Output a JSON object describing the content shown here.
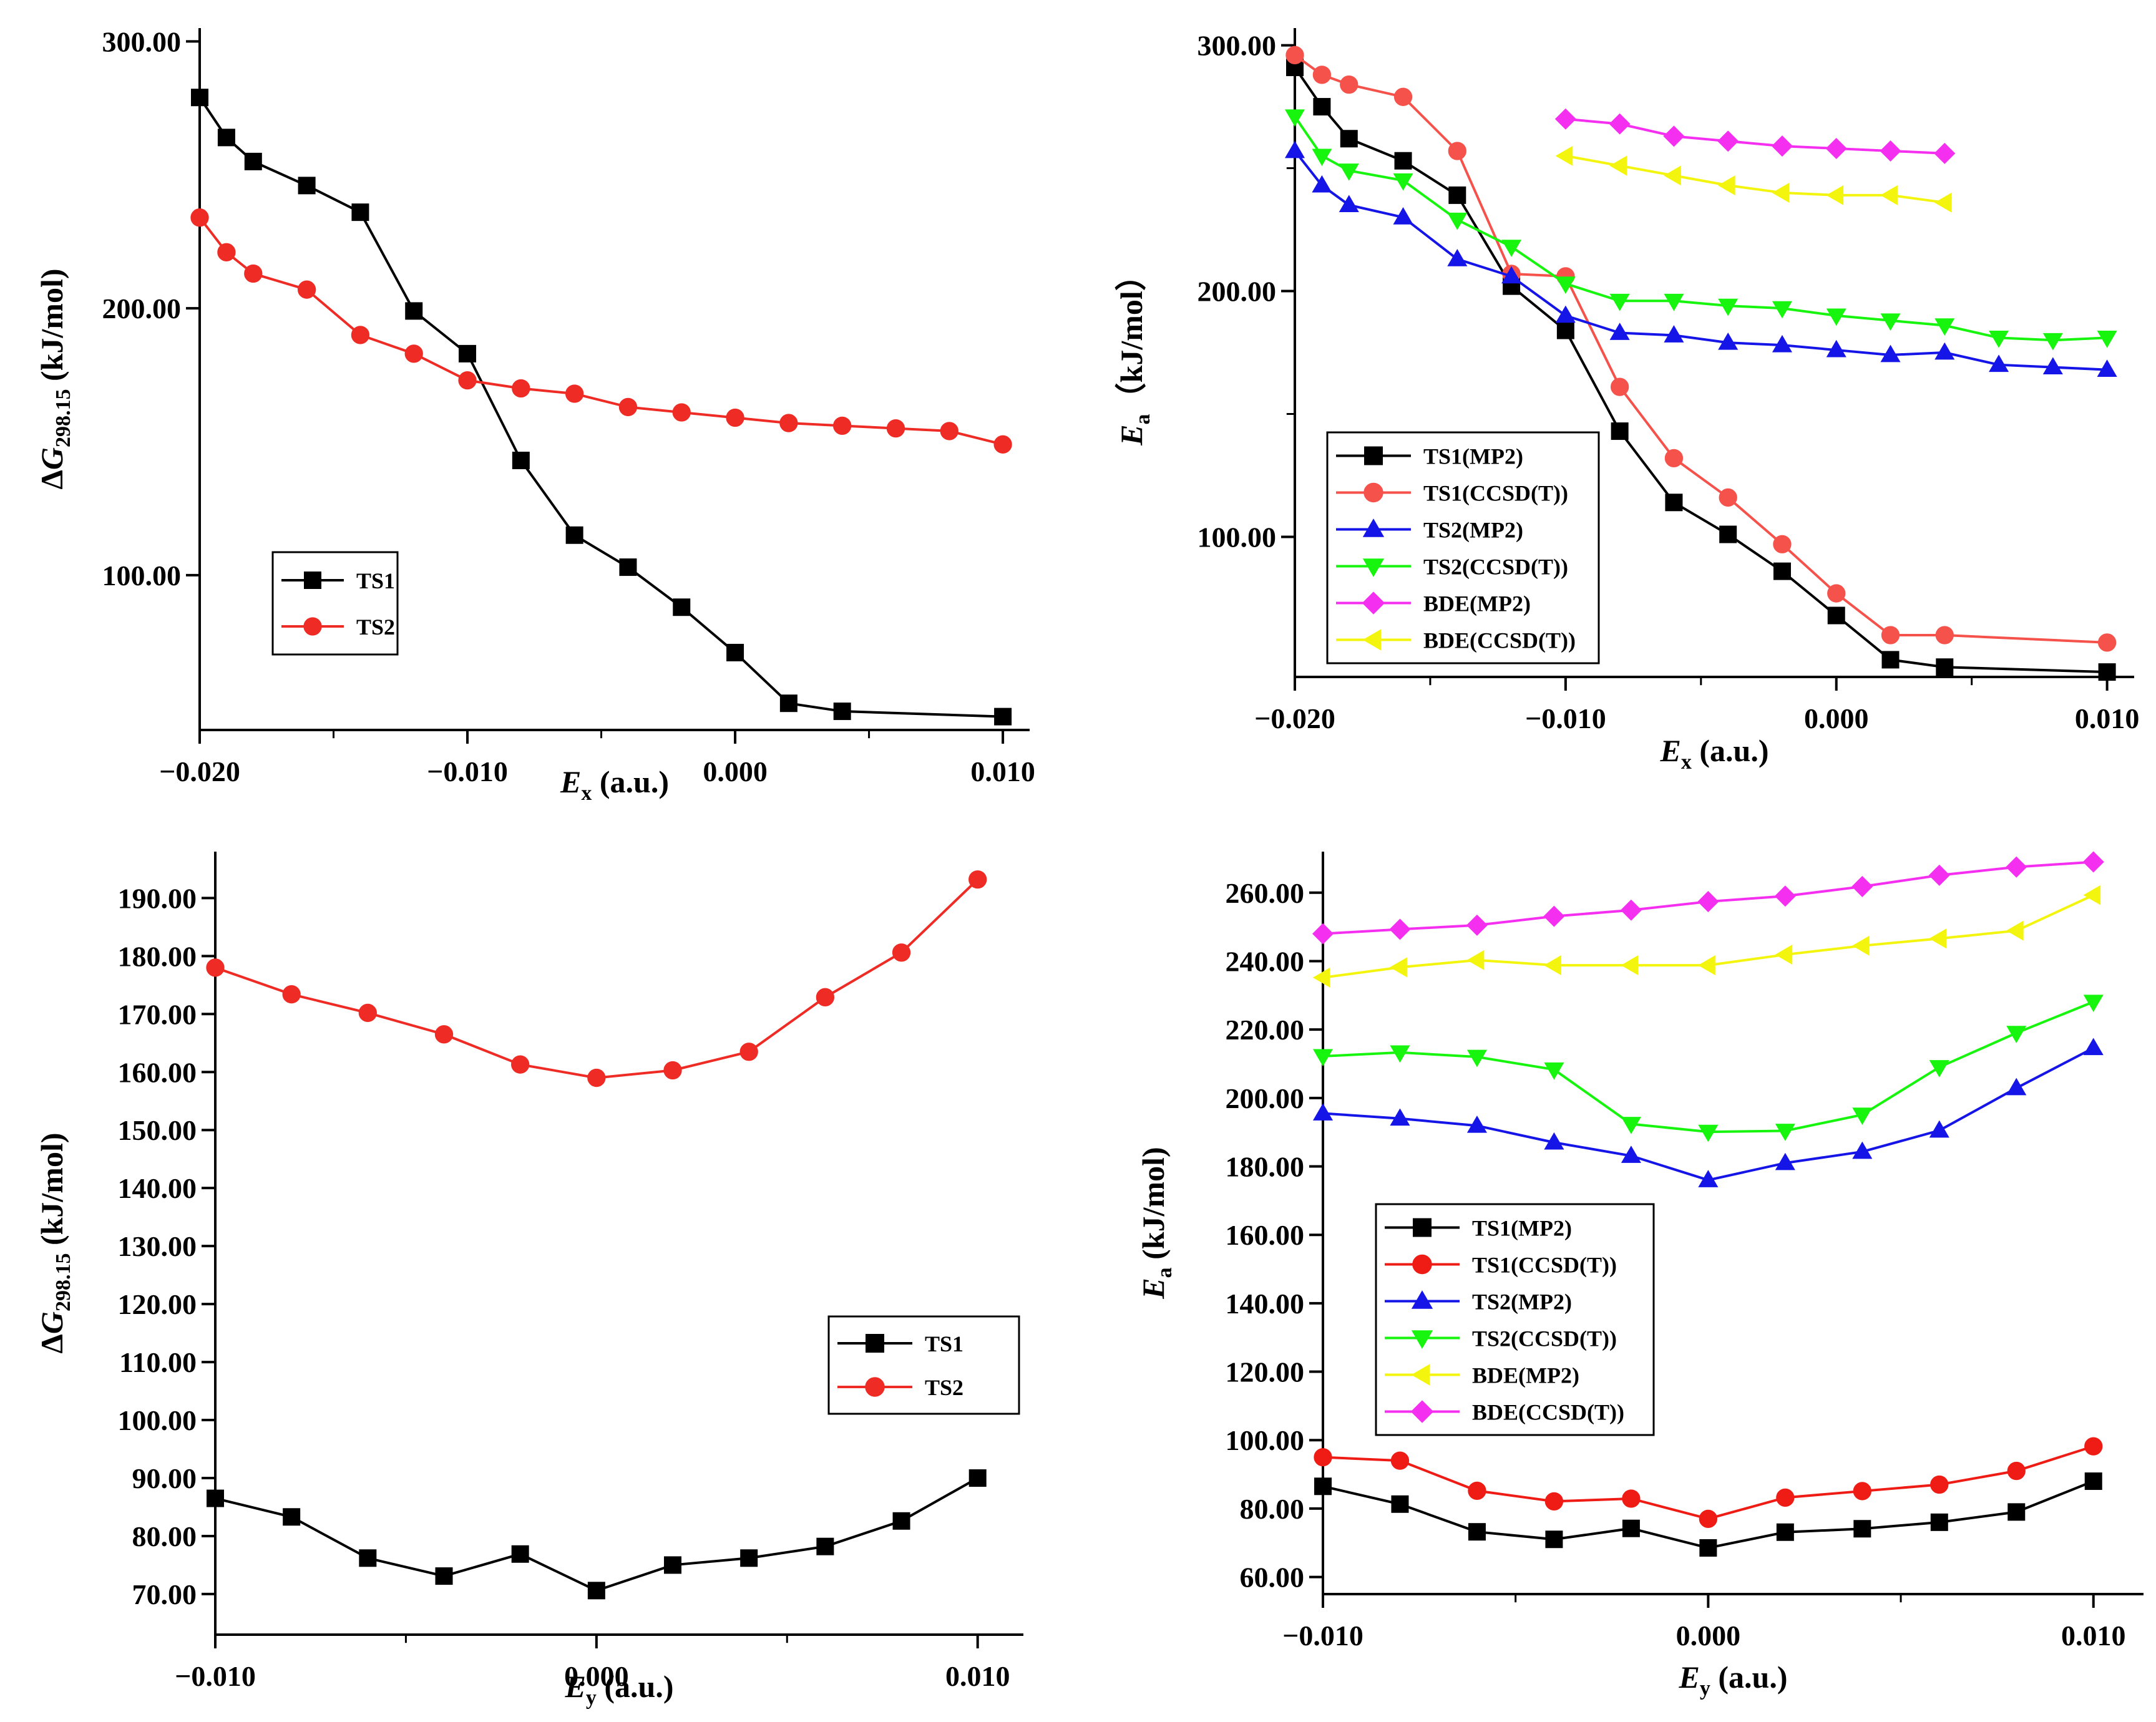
{
  "chart_data": [
    {
      "id": "a",
      "type": "line",
      "title": "",
      "xlabel": {
        "main": "E",
        "sub": "x",
        "suffix": " (a.u.)"
      },
      "ylabel": {
        "prefix": "Δ",
        "main": "G",
        "sub": "298.15",
        "suffix": " (kJ/mol)"
      },
      "xlim": [
        -0.02,
        0.011
      ],
      "ylim": [
        42,
        305
      ],
      "xticks": [
        -0.02,
        -0.01,
        0.0,
        0.01
      ],
      "xtick_labels": [
        "−0.020",
        "−0.010",
        "0.000",
        "0.010"
      ],
      "yticks": [
        100,
        200,
        300
      ],
      "ytick_labels": [
        "100.00",
        "200.00",
        "300.00"
      ],
      "legend_position": "lower-left",
      "series": [
        {
          "name": "TS1",
          "color": "#000000",
          "marker": "square",
          "x": [
            -0.02,
            -0.019,
            -0.018,
            -0.016,
            -0.014,
            -0.012,
            -0.01,
            -0.008,
            -0.006,
            -0.004,
            -0.002,
            0.0,
            0.002,
            0.004,
            0.01
          ],
          "y": [
            279,
            264,
            255,
            246,
            236,
            199,
            183,
            143,
            115,
            103,
            88,
            71,
            52,
            49,
            47
          ]
        },
        {
          "name": "TS2",
          "color": "#ee2b24",
          "marker": "circle",
          "x": [
            -0.02,
            -0.019,
            -0.018,
            -0.016,
            -0.014,
            -0.012,
            -0.01,
            -0.008,
            -0.006,
            -0.004,
            -0.002,
            0.0,
            0.002,
            0.004,
            0.006,
            0.008,
            0.01
          ],
          "y": [
            234,
            221,
            213,
            207,
            190,
            183,
            173,
            170,
            168,
            163,
            161,
            159,
            157,
            156,
            155,
            154,
            149
          ]
        }
      ]
    },
    {
      "id": "b",
      "type": "line",
      "title": "",
      "xlabel": {
        "main": "E",
        "sub": "x",
        "suffix": " (a.u.)"
      },
      "ylabel": {
        "prefix": "",
        "main": "E",
        "sub": "a",
        "suffix": "（kJ/mol）"
      },
      "xlim": [
        -0.02,
        0.011
      ],
      "ylim": [
        43,
        307
      ],
      "xticks": [
        -0.02,
        -0.01,
        0.0,
        0.01
      ],
      "xtick_labels": [
        "−0.020",
        "−0.010",
        "0.000",
        "0.010"
      ],
      "yticks": [
        100,
        200,
        300
      ],
      "ytick_labels": [
        "100.00",
        "200.00",
        "300.00"
      ],
      "legend_position": "lower-left",
      "series": [
        {
          "name": "TS1(MP2)",
          "color": "#000000",
          "marker": "square",
          "x": [
            -0.02,
            -0.019,
            -0.018,
            -0.016,
            -0.014,
            -0.012,
            -0.01,
            -0.008,
            -0.006,
            -0.004,
            -0.002,
            0.0,
            0.002,
            0.004,
            0.01
          ],
          "y": [
            291,
            275,
            262,
            253,
            239,
            202,
            184,
            143,
            114,
            101,
            86,
            68,
            50,
            47,
            45
          ]
        },
        {
          "name": "TS1(CCSD(T))",
          "color": "#f5524b",
          "marker": "circle",
          "x": [
            -0.02,
            -0.019,
            -0.018,
            -0.016,
            -0.014,
            -0.012,
            -0.01,
            -0.008,
            -0.006,
            -0.004,
            -0.002,
            0.0,
            0.002,
            0.004,
            0.01
          ],
          "y": [
            296,
            288,
            284,
            279,
            257,
            207,
            206,
            161,
            132,
            116,
            97,
            77,
            60,
            60,
            57
          ]
        },
        {
          "name": "TS2(MP2)",
          "color": "#1515e8",
          "marker": "triangle-up",
          "x": [
            -0.02,
            -0.019,
            -0.018,
            -0.016,
            -0.014,
            -0.012,
            -0.01,
            -0.008,
            -0.006,
            -0.004,
            -0.002,
            0.0,
            0.002,
            0.004,
            0.006,
            0.008,
            0.01
          ],
          "y": [
            257,
            243,
            235,
            230,
            213,
            206,
            190,
            183,
            182,
            179,
            178,
            176,
            174,
            175,
            170,
            169,
            168
          ]
        },
        {
          "name": "TS2(CCSD(T))",
          "color": "#17f50e",
          "marker": "triangle-down",
          "x": [
            -0.02,
            -0.019,
            -0.018,
            -0.016,
            -0.014,
            -0.012,
            -0.01,
            -0.008,
            -0.006,
            -0.004,
            -0.002,
            0.0,
            0.002,
            0.004,
            0.006,
            0.008,
            0.01
          ],
          "y": [
            271,
            255,
            249,
            245,
            229,
            218,
            203,
            196,
            196,
            194,
            193,
            190,
            188,
            186,
            181,
            180,
            181
          ]
        },
        {
          "name": "BDE(MP2)",
          "color": "#f52ff0",
          "marker": "diamond",
          "x": [
            -0.01,
            -0.008,
            -0.006,
            -0.004,
            -0.002,
            0.0,
            0.002,
            0.004
          ],
          "y": [
            270,
            268,
            263,
            261,
            259,
            258,
            257,
            256
          ]
        },
        {
          "name": "BDE(CCSD(T))",
          "color": "#f4f50e",
          "marker": "triangle-left",
          "x": [
            -0.01,
            -0.008,
            -0.006,
            -0.004,
            -0.002,
            0.0,
            0.002,
            0.004
          ],
          "y": [
            255,
            251,
            247,
            243,
            240,
            239,
            239,
            236
          ]
        }
      ]
    },
    {
      "id": "c",
      "type": "line",
      "title": "",
      "xlabel": {
        "main": "E",
        "sub": "y",
        "suffix": " (a.u.)"
      },
      "ylabel": {
        "prefix": "Δ",
        "main": "G",
        "sub": "298.15",
        "suffix": " (kJ/mol)"
      },
      "xlim": [
        -0.01,
        0.0112
      ],
      "ylim": [
        63,
        198
      ],
      "xticks": [
        -0.01,
        0.0,
        0.01
      ],
      "xtick_labels": [
        "−0.010",
        "0.000",
        "0.010"
      ],
      "yticks": [
        70,
        80,
        90,
        100,
        110,
        120,
        130,
        140,
        150,
        160,
        170,
        180,
        190
      ],
      "ytick_labels": [
        "70.00",
        "80.00",
        "90.00",
        "100.00",
        "110.00",
        "120.00",
        "130.00",
        "140.00",
        "150.00",
        "160.00",
        "170.00",
        "180.00",
        "190.00"
      ],
      "legend_position": "lower-right",
      "series": [
        {
          "name": "TS1",
          "color": "#000000",
          "marker": "square",
          "x": [
            -0.01,
            -0.008,
            -0.006,
            -0.004,
            -0.002,
            0.0,
            0.002,
            0.004,
            0.006,
            0.008,
            0.01
          ],
          "y": [
            86.5,
            83.3,
            76.2,
            73.1,
            76.9,
            70.6,
            75.0,
            76.2,
            78.2,
            82.6,
            90.0
          ]
        },
        {
          "name": "TS2",
          "color": "#ee2b24",
          "marker": "circle",
          "x": [
            -0.01,
            -0.008,
            -0.006,
            -0.004,
            -0.002,
            0.0,
            0.002,
            0.004,
            0.006,
            0.008,
            0.01
          ],
          "y": [
            178.0,
            173.4,
            170.2,
            166.5,
            161.3,
            159.0,
            160.3,
            163.5,
            172.9,
            180.6,
            193.2
          ]
        }
      ]
    },
    {
      "id": "d",
      "type": "line",
      "title": "",
      "xlabel": {
        "main": "E",
        "sub": "y",
        "suffix": " (a.u.)"
      },
      "ylabel": {
        "prefix": "",
        "main": "E",
        "sub": "a",
        "suffix": " (kJ/mol)"
      },
      "xlim": [
        -0.01,
        0.0113
      ],
      "ylim": [
        55,
        272
      ],
      "xticks": [
        -0.01,
        0.0,
        0.01
      ],
      "xtick_labels": [
        "−0.010",
        "0.000",
        "0.010"
      ],
      "yticks": [
        60,
        80,
        100,
        120,
        140,
        160,
        180,
        200,
        220,
        240,
        260
      ],
      "ytick_labels": [
        "60.00",
        "80.00",
        "100.00",
        "120.00",
        "140.00",
        "160.00",
        "180.00",
        "200.00",
        "220.00",
        "240.00",
        "260.00"
      ],
      "legend_position": "center-left",
      "series": [
        {
          "name": "TS1(MP2)",
          "color": "#000000",
          "marker": "square",
          "x": [
            -0.01,
            -0.008,
            -0.006,
            -0.004,
            -0.002,
            0.0,
            0.002,
            0.004,
            0.006,
            0.008,
            0.01
          ],
          "y": [
            86.5,
            81.3,
            73.2,
            71.0,
            74.2,
            68.5,
            73.1,
            74.1,
            76.0,
            79.0,
            88.0
          ]
        },
        {
          "name": "TS1(CCSD(T))",
          "color": "#ee1c14",
          "marker": "circle",
          "x": [
            -0.01,
            -0.008,
            -0.006,
            -0.004,
            -0.002,
            0.0,
            0.002,
            0.004,
            0.006,
            0.008,
            0.01
          ],
          "y": [
            95.0,
            94.0,
            85.2,
            82.1,
            82.9,
            77.0,
            83.2,
            85.1,
            87.0,
            91.0,
            98.2
          ]
        },
        {
          "name": "TS2(MP2)",
          "color": "#1515e8",
          "marker": "triangle-up",
          "x": [
            -0.01,
            -0.008,
            -0.006,
            -0.004,
            -0.002,
            0.0,
            0.002,
            0.004,
            0.006,
            0.008,
            0.01
          ],
          "y": [
            195.5,
            194.0,
            191.9,
            187.0,
            183.1,
            176.0,
            181.0,
            184.3,
            190.5,
            202.9,
            214.6
          ]
        },
        {
          "name": "TS2(CCSD(T))",
          "color": "#17f50e",
          "marker": "triangle-down",
          "x": [
            -0.01,
            -0.008,
            -0.006,
            -0.004,
            -0.002,
            0.0,
            0.002,
            0.004,
            0.006,
            0.008,
            0.01
          ],
          "y": [
            212.2,
            213.3,
            212.0,
            208.3,
            192.4,
            190.1,
            190.4,
            195.1,
            209.0,
            219.0,
            228.1
          ]
        },
        {
          "name": "BDE(MP2)",
          "color": "#f4f50e",
          "marker": "triangle-left",
          "x": [
            -0.01,
            -0.008,
            -0.006,
            -0.004,
            -0.002,
            0.0,
            0.002,
            0.004,
            0.006,
            0.008,
            0.01
          ],
          "y": [
            235.2,
            238.2,
            240.3,
            238.8,
            238.8,
            238.8,
            241.9,
            244.5,
            246.6,
            248.9,
            259.3
          ]
        },
        {
          "name": "BDE(CCSD(T))",
          "color": "#f52ff0",
          "marker": "diamond",
          "x": [
            -0.01,
            -0.008,
            -0.006,
            -0.004,
            -0.002,
            0.0,
            0.002,
            0.004,
            0.006,
            0.008,
            0.01
          ],
          "y": [
            248.0,
            249.3,
            250.5,
            253.1,
            254.9,
            257.4,
            259.0,
            261.8,
            265.1,
            267.5,
            269.0
          ]
        }
      ]
    }
  ]
}
